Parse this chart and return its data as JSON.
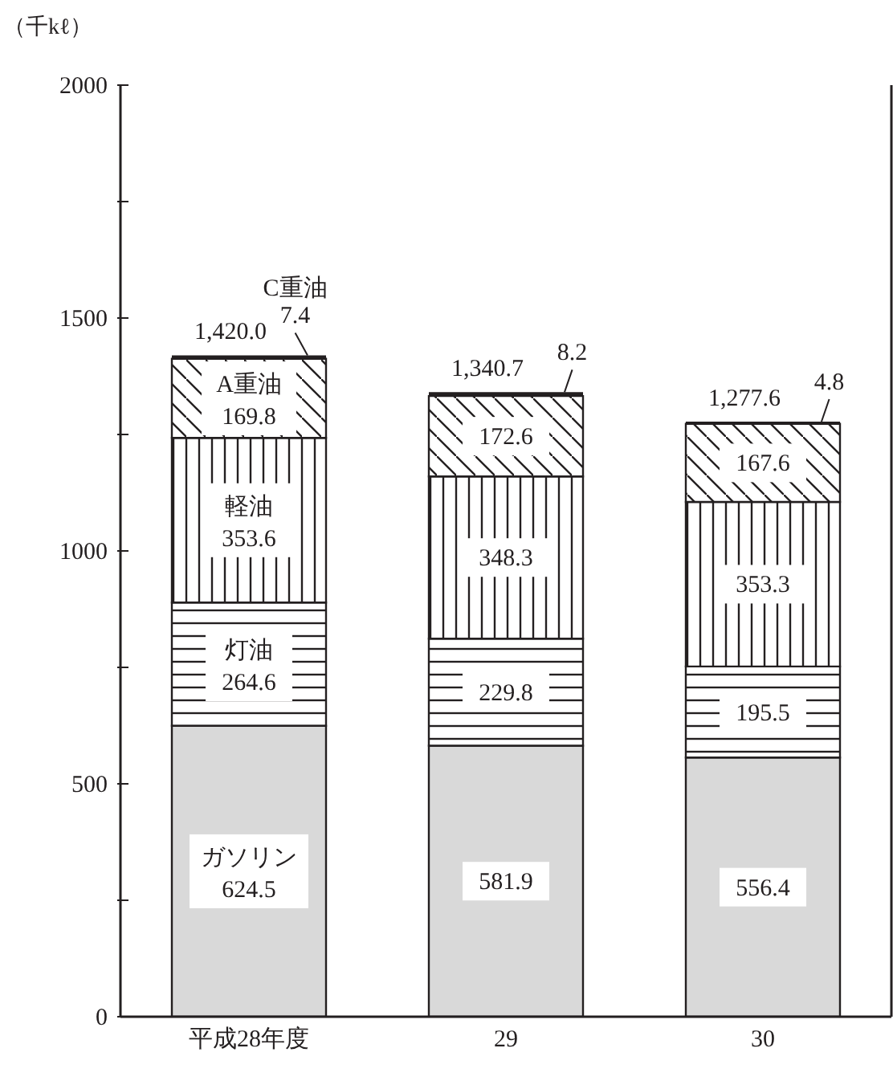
{
  "chart_data": {
    "type": "bar",
    "stacked": true,
    "ylabel": "（千kℓ）",
    "categories": [
      "平成28年度",
      "29",
      "30"
    ],
    "series": [
      {
        "name": "ガソリン",
        "color": "#d9d9d9",
        "values": [
          624.5,
          581.9,
          556.4
        ]
      },
      {
        "name": "灯油",
        "color": "#231f20",
        "values": [
          264.6,
          229.8,
          195.5
        ]
      },
      {
        "name": "軽油",
        "color": "#231f20",
        "values": [
          353.6,
          348.3,
          353.3
        ]
      },
      {
        "name": "A重油",
        "color": "#231f20",
        "values": [
          169.8,
          172.6,
          167.6
        ]
      },
      {
        "name": "C重油",
        "color": "#231f20",
        "values": [
          7.4,
          8.2,
          4.8
        ]
      }
    ],
    "totals": [
      "1,420.0",
      "1,340.7",
      "1,277.6"
    ],
    "data_labels": true,
    "ylim": [
      0,
      2000
    ],
    "yticks": [
      0,
      {
        "value": 250,
        "label": null
      },
      500,
      {
        "value": 750,
        "label": null
      },
      1000,
      {
        "value": 1250,
        "label": null
      },
      1500,
      {
        "value": 1750,
        "label": null
      },
      2000
    ],
    "grid": false
  }
}
